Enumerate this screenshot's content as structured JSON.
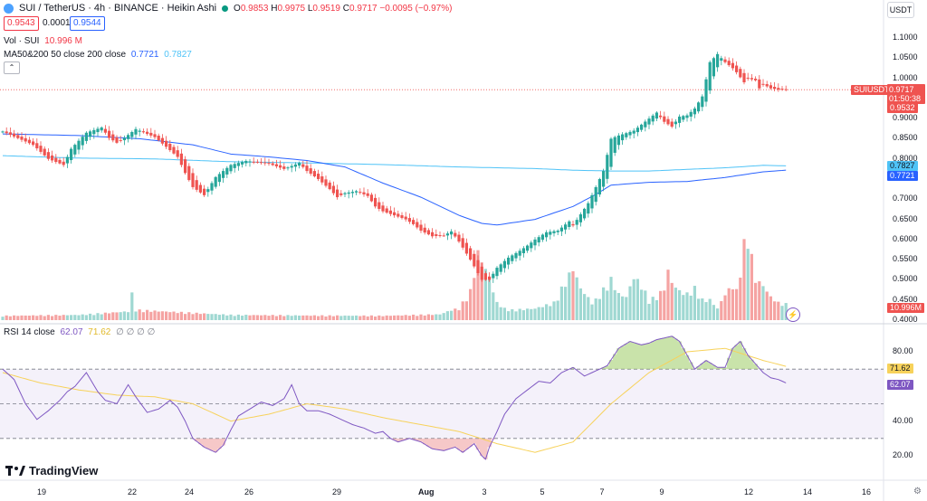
{
  "header": {
    "title": "SUI / TetherUS · 4h · BINANCE · Heikin Ashi",
    "ohlc": [
      {
        "k": "O",
        "v": "0.9853"
      },
      {
        "k": "H",
        "v": "0.9975"
      },
      {
        "k": "L",
        "v": "0.9519"
      },
      {
        "k": "C",
        "v": "0.9717"
      }
    ],
    "change": "−0.0095 (−0.97%)",
    "sell_price": "0.9543",
    "spread": "0.0001",
    "buy_price": "0.9544",
    "currency": "USDT"
  },
  "legend": {
    "vol_label": "Vol · SUI",
    "vol_value": "10.996 M",
    "ma_label": "MA50&200 50 close 200 close",
    "ma50_value": "0.7721",
    "ma200_value": "0.7827",
    "rsi_label": "RSI 14 close",
    "rsi_value": "62.07",
    "rsi_ma_value": "71.62",
    "rsi_na": "∅ ∅ ∅ ∅"
  },
  "tags": {
    "symbol": "SUIUSDT",
    "last_price": "0.9717",
    "countdown": "01:50:38",
    "prev_price": "0.9532",
    "ma200_tag": "0.7827",
    "ma50_tag": "0.7721",
    "volume_tag": "10.996M",
    "rsi_ma_tag": "71.62",
    "rsi_tag": "62.07"
  },
  "logo": "TradingView",
  "colors": {
    "up": "#26a69a",
    "down": "#ef5350",
    "ma50": "#2962ff",
    "ma200": "#4fc3f7",
    "rsi": "#7e57c2",
    "rsi_ma": "#f7d25b"
  },
  "chart_data": [
    {
      "type": "candlestick",
      "title": "SUI / TetherUS · 4h · BINANCE · Heikin Ashi",
      "y_ticks": [
        "1.1000",
        "1.0500",
        "1.0000",
        "0.9500",
        "0.9000",
        "0.8500",
        "0.8000",
        "0.7500",
        "0.7000",
        "0.6500",
        "0.6000",
        "0.5500",
        "0.5000",
        "0.4500",
        "0.4000"
      ],
      "x_ticks": [
        "19",
        "22",
        "24",
        "26",
        "29",
        "Aug",
        "3",
        "5",
        "7",
        "9",
        "12",
        "14",
        "16"
      ],
      "ylim": [
        0.4,
        1.12
      ],
      "close_anchors": {
        "x": [
          0,
          8,
          12,
          16,
          18,
          22,
          26,
          28,
          30,
          32,
          35,
          38,
          40,
          43,
          46,
          48,
          50,
          53,
          56,
          60,
          64,
          70,
          74,
          78,
          80,
          83,
          86,
          88,
          90,
          93,
          96,
          98,
          100,
          103,
          106,
          108,
          110,
          113,
          116,
          118,
          120,
          123,
          126,
          128,
          130,
          133,
          136,
          138,
          140,
          143,
          146,
          149,
          150,
          154,
          158,
          160,
          162,
          164,
          166,
          170,
          172,
          174,
          176,
          178,
          180,
          182,
          184,
          186,
          188,
          190,
          192,
          193,
          195,
          196,
          198,
          199,
          200,
          202,
          204,
          206
        ],
        "y": [
          0.868,
          0.835,
          0.8,
          0.785,
          0.825,
          0.865,
          0.878,
          0.852,
          0.84,
          0.852,
          0.874,
          0.862,
          0.854,
          0.83,
          0.805,
          0.765,
          0.73,
          0.71,
          0.755,
          0.785,
          0.795,
          0.788,
          0.775,
          0.79,
          0.77,
          0.75,
          0.725,
          0.705,
          0.715,
          0.72,
          0.708,
          0.682,
          0.67,
          0.66,
          0.65,
          0.638,
          0.622,
          0.608,
          0.61,
          0.62,
          0.595,
          0.55,
          0.5,
          0.5,
          0.53,
          0.555,
          0.572,
          0.585,
          0.6,
          0.618,
          0.622,
          0.645,
          0.635,
          0.69,
          0.77,
          0.85,
          0.858,
          0.864,
          0.87,
          0.9,
          0.915,
          0.892,
          0.88,
          0.905,
          0.908,
          0.925,
          0.955,
          1.04,
          1.06,
          1.04,
          1.025,
          1.015,
          0.99,
          1.0,
          0.995,
          0.975,
          0.985,
          0.975,
          0.972,
          0.972
        ]
      },
      "ma50": {
        "x": [
          0,
          20,
          36,
          50,
          60,
          70,
          80,
          90,
          100,
          110,
          120,
          126,
          130,
          140,
          150,
          156,
          160,
          170,
          180,
          190,
          200,
          206
        ],
        "y": [
          0.862,
          0.858,
          0.85,
          0.835,
          0.812,
          0.805,
          0.796,
          0.78,
          0.74,
          0.705,
          0.66,
          0.64,
          0.636,
          0.65,
          0.682,
          0.712,
          0.735,
          0.742,
          0.744,
          0.754,
          0.768,
          0.7721
        ]
      },
      "ma200": {
        "x": [
          0,
          20,
          40,
          60,
          80,
          100,
          120,
          140,
          150,
          160,
          170,
          180,
          190,
          200,
          206
        ],
        "y": [
          0.808,
          0.802,
          0.8,
          0.793,
          0.79,
          0.786,
          0.78,
          0.776,
          0.772,
          0.77,
          0.77,
          0.774,
          0.778,
          0.784,
          0.7827
        ]
      },
      "volume_anchors": {
        "x": [
          0,
          20,
          33,
          34,
          35,
          60,
          80,
          100,
          115,
          118,
          120,
          123,
          125,
          126,
          128,
          130,
          132,
          134,
          140,
          145,
          150,
          152,
          155,
          156,
          160,
          162,
          164,
          166,
          168,
          170,
          172,
          174,
          175,
          176,
          178,
          180,
          182,
          184,
          186,
          188,
          190,
          192,
          193,
          195,
          196,
          198,
          200,
          202,
          204,
          206
        ],
        "v": [
          0.15,
          0.18,
          0.3,
          0.9,
          0.35,
          0.18,
          0.16,
          0.15,
          0.2,
          0.35,
          0.4,
          1.0,
          2.3,
          2.1,
          1.4,
          0.6,
          0.4,
          0.35,
          0.4,
          0.6,
          1.8,
          1.1,
          0.6,
          0.7,
          1.4,
          0.9,
          0.8,
          1.5,
          1.2,
          0.7,
          0.8,
          1.1,
          1.7,
          1.3,
          1.0,
          0.9,
          1.1,
          0.7,
          0.7,
          0.4,
          0.9,
          1.2,
          1.0,
          2.6,
          2.9,
          1.4,
          1.2,
          0.8,
          0.6,
          0.55
        ]
      }
    },
    {
      "type": "line",
      "title": "RSI 14 close",
      "y_ticks": [
        "80.00",
        "40.00",
        "20.00"
      ],
      "ylim": [
        16,
        87
      ],
      "bands": {
        "upper": 70,
        "middle": 50,
        "lower": 30
      },
      "series": [
        {
          "name": "RSI",
          "x": [
            0,
            3,
            6,
            9,
            12,
            15,
            17,
            19,
            22,
            25,
            27,
            30,
            33,
            35,
            38,
            41,
            44,
            46,
            48,
            50,
            53,
            56,
            58,
            60,
            62,
            65,
            68,
            71,
            74,
            76,
            78,
            80,
            83,
            86,
            89,
            92,
            95,
            98,
            100,
            102,
            104,
            107,
            110,
            113,
            116,
            119,
            121,
            124,
            126,
            127,
            128,
            130,
            132,
            135,
            138,
            141,
            144,
            147,
            150,
            153,
            156,
            159,
            162,
            165,
            168,
            170,
            172,
            174,
            176,
            178,
            180,
            182,
            185,
            188,
            190,
            192,
            194,
            196,
            198,
            200,
            202,
            204,
            206
          ],
          "y": [
            70,
            64,
            50,
            41,
            46,
            52,
            57,
            60,
            68,
            57,
            52,
            50,
            61,
            54,
            45,
            47,
            52,
            48,
            40,
            30,
            25,
            22,
            26,
            35,
            43,
            47,
            51,
            49,
            53,
            61,
            50,
            46,
            46,
            44,
            41,
            38,
            36,
            33,
            34,
            30,
            28,
            30,
            28,
            24,
            23,
            25,
            22,
            27,
            20,
            18,
            25,
            34,
            44,
            53,
            58,
            63,
            62,
            68,
            71,
            66,
            69,
            72,
            82,
            86,
            84,
            85,
            87,
            88,
            89,
            86,
            78,
            70,
            75,
            71,
            71,
            82,
            86,
            78,
            73,
            68,
            65,
            64,
            62.07
          ]
        },
        {
          "name": "RSI MA",
          "x": [
            0,
            10,
            20,
            30,
            40,
            50,
            60,
            70,
            80,
            90,
            100,
            110,
            120,
            130,
            140,
            150,
            160,
            170,
            180,
            190,
            200,
            206
          ],
          "y": [
            68,
            62,
            58,
            55,
            54,
            50,
            40,
            44,
            50,
            47,
            42,
            38,
            34,
            27,
            22,
            28,
            50,
            68,
            80,
            82,
            75,
            71.62
          ]
        }
      ]
    }
  ]
}
